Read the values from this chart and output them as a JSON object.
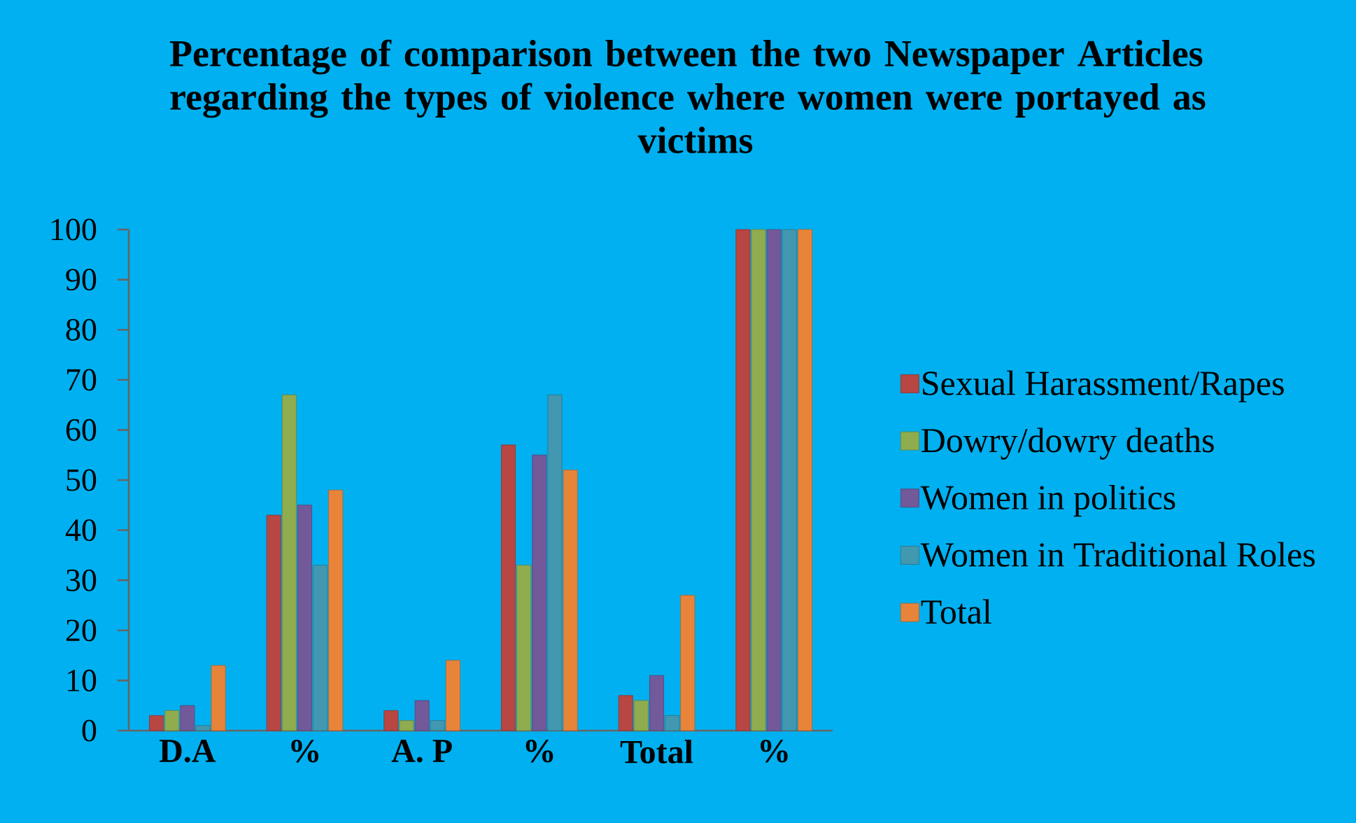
{
  "chart_data": {
    "type": "bar",
    "title": "Percentage of comparison between the two Newspaper Articles regarding the types of violence where women were portayed as victims",
    "categories": [
      "D.A",
      "%",
      "A. P",
      "%",
      "Total",
      "%"
    ],
    "series": [
      {
        "name": "Sexual Harassment/Rapes",
        "color": "#b84643",
        "values": [
          3,
          43,
          4,
          57,
          7,
          100
        ]
      },
      {
        "name": "Dowry/dowry deaths",
        "color": "#8fac4f",
        "values": [
          4,
          67,
          2,
          33,
          6,
          100
        ]
      },
      {
        "name": "Women in politics",
        "color": "#72599a",
        "values": [
          5,
          45,
          6,
          55,
          11,
          100
        ]
      },
      {
        "name": "Women in Traditional Roles",
        "color": "#4298b0",
        "values": [
          1,
          33,
          2,
          67,
          3,
          100
        ]
      },
      {
        "name": "Total",
        "color": "#e8843a",
        "values": [
          13,
          48,
          14,
          52,
          27,
          100
        ]
      }
    ],
    "ylim": [
      0,
      100
    ],
    "yticks": [
      0,
      10,
      20,
      30,
      40,
      50,
      60,
      70,
      80,
      90,
      100
    ],
    "legend": "right"
  }
}
